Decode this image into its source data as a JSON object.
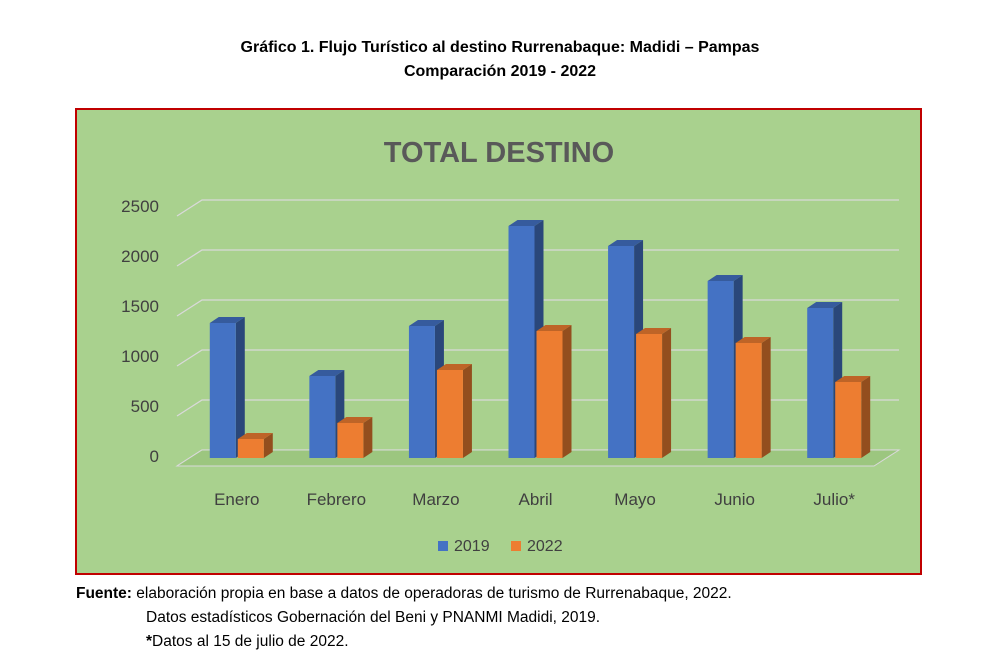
{
  "figure": {
    "title_line1": "Gráfico 1. Flujo Turístico al destino Rurrenabaque: Madidi – Pampas",
    "title_line2": "Comparación 2019 - 2022"
  },
  "source": {
    "label": "Fuente:",
    "line1": "elaboración propia en base a datos de operadoras de turismo de Rurrenabaque, 2022.",
    "line2": "Datos estadísticos Gobernación del Beni y PNANMI Madidi, 2019.",
    "line3_mark": "*",
    "line3": "Datos al 15 de julio de 2022."
  },
  "chart_data": {
    "type": "bar",
    "title": "TOTAL DESTINO",
    "categories": [
      "Enero",
      "Febrero",
      "Marzo",
      "Abril",
      "Mayo",
      "Junio",
      "Julio*"
    ],
    "series": [
      {
        "name": "2019",
        "values": [
          1350,
          820,
          1320,
          2320,
          2120,
          1770,
          1500
        ],
        "color": "#4472c4"
      },
      {
        "name": "2022",
        "values": [
          190,
          350,
          880,
          1270,
          1240,
          1150,
          760
        ],
        "color": "#ed7d31"
      }
    ],
    "ylim": [
      0,
      2500
    ],
    "yticks": [
      "0",
      "500",
      "1000",
      "1500",
      "2000",
      "2500"
    ],
    "ytick_values": [
      0,
      500,
      1000,
      1500,
      2000,
      2500
    ],
    "grid": true,
    "legend": "bottom",
    "background": "#a9d18e",
    "border_color": "#c00000",
    "title_color": "#595959"
  }
}
